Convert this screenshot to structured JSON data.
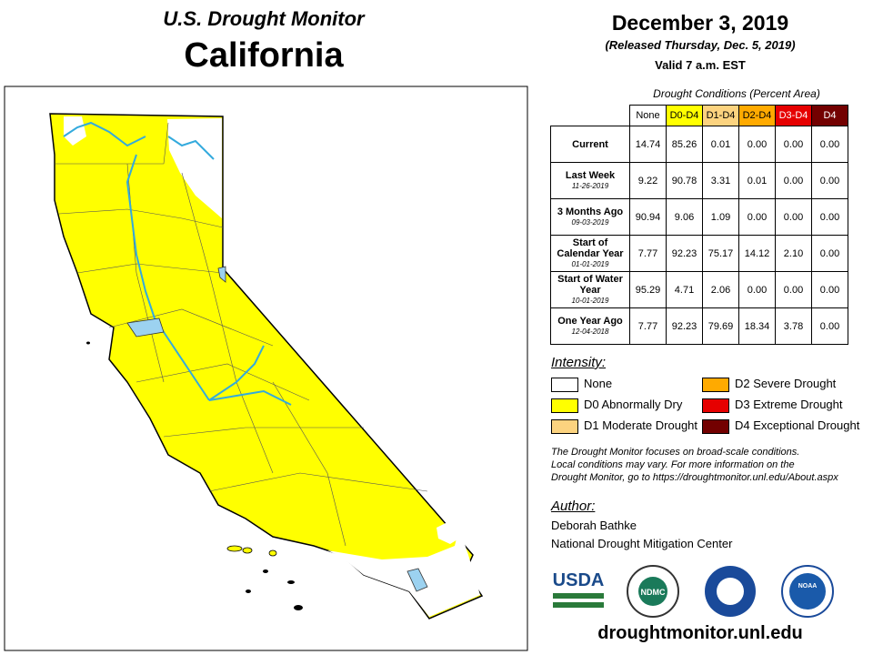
{
  "header": {
    "title": "U.S. Drought Monitor",
    "region": "California"
  },
  "dates": {
    "date": "December 3, 2019",
    "released": "(Released Thursday, Dec. 5, 2019)",
    "valid": "Valid 7 a.m. EST"
  },
  "table": {
    "caption": "Drought Conditions (Percent Area)",
    "columns": [
      {
        "label": "None",
        "color": "#ffffff",
        "text": "#000000"
      },
      {
        "label": "D0-D4",
        "color": "#ffff00",
        "text": "#000000"
      },
      {
        "label": "D1-D4",
        "color": "#fcd37f",
        "text": "#000000"
      },
      {
        "label": "D2-D4",
        "color": "#ffaa00",
        "text": "#000000"
      },
      {
        "label": "D3-D4",
        "color": "#e60000",
        "text": "#ffffff"
      },
      {
        "label": "D4",
        "color": "#730000",
        "text": "#ffffff"
      }
    ],
    "rows": [
      {
        "label": "Current",
        "values": [
          "14.74",
          "85.26",
          "0.01",
          "0.00",
          "0.00",
          "0.00"
        ]
      },
      {
        "label": "Last Week",
        "date": "11-26-2019",
        "values": [
          "9.22",
          "90.78",
          "3.31",
          "0.01",
          "0.00",
          "0.00"
        ]
      },
      {
        "label": "3 Months Ago",
        "date": "09-03-2019",
        "values": [
          "90.94",
          "9.06",
          "1.09",
          "0.00",
          "0.00",
          "0.00"
        ]
      },
      {
        "label": "Start of Calendar Year",
        "date": "01-01-2019",
        "values": [
          "7.77",
          "92.23",
          "75.17",
          "14.12",
          "2.10",
          "0.00"
        ]
      },
      {
        "label": "Start of Water Year",
        "date": "10-01-2019",
        "values": [
          "95.29",
          "4.71",
          "2.06",
          "0.00",
          "0.00",
          "0.00"
        ]
      },
      {
        "label": "One Year Ago",
        "date": "12-04-2018",
        "values": [
          "7.77",
          "92.23",
          "79.69",
          "18.34",
          "3.78",
          "0.00"
        ]
      }
    ]
  },
  "legend": {
    "title": "Intensity:",
    "items": [
      {
        "label": "None",
        "color": "#ffffff"
      },
      {
        "label": "D0 Abnormally Dry",
        "color": "#ffff00"
      },
      {
        "label": "D1 Moderate Drought",
        "color": "#fcd37f"
      },
      {
        "label": "D2 Severe Drought",
        "color": "#ffaa00"
      },
      {
        "label": "D3 Extreme Drought",
        "color": "#e60000"
      },
      {
        "label": "D4 Exceptional Drought",
        "color": "#730000"
      }
    ]
  },
  "note": [
    "The Drought Monitor focuses on broad-scale conditions.",
    "Local conditions may vary. For more information on the",
    "Drought Monitor, go to https://droughtmonitor.unl.edu/About.aspx"
  ],
  "author": {
    "title": "Author:",
    "lines": [
      "Deborah Bathke",
      "National Drought Mitigation Center"
    ]
  },
  "logos": [
    "USDA",
    "NDMC",
    "NOAA"
  ],
  "url": "droughtmonitor.unl.edu"
}
